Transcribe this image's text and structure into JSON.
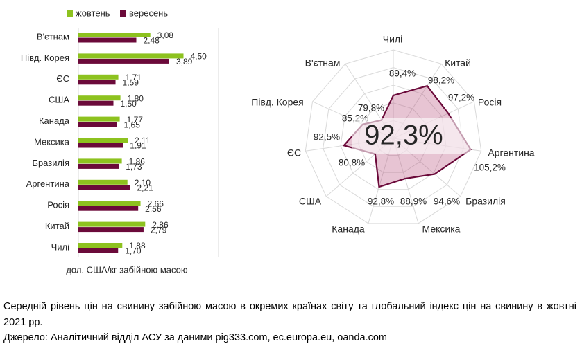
{
  "chart_data": [
    {
      "type": "bar",
      "orientation": "horizontal",
      "categories": [
        "В'єтнам",
        "Півд. Корея",
        "ЄС",
        "США",
        "Канада",
        "Мексика",
        "Бразилія",
        "Аргентина",
        "Росія",
        "Китай",
        "Чилі"
      ],
      "series": [
        {
          "name": "жовтень",
          "color": "#8dc21f",
          "values": [
            3.08,
            4.5,
            1.71,
            1.8,
            1.77,
            2.11,
            1.86,
            2.1,
            2.66,
            2.86,
            1.88
          ],
          "value_labels": [
            "3,08",
            "4,50",
            "1,71",
            "1,80",
            "1,77",
            "2,11",
            "1,86",
            "2,10",
            "2,66",
            "2,86",
            "1,88"
          ]
        },
        {
          "name": "вересень",
          "color": "#6b0a3a",
          "values": [
            2.48,
            3.89,
            1.59,
            1.5,
            1.65,
            1.91,
            1.73,
            2.21,
            2.56,
            2.79,
            1.7
          ],
          "value_labels": [
            "2,48",
            "3,89",
            "1,59",
            "1,50",
            "1,65",
            "1,91",
            "1,73",
            "2,21",
            "2,56",
            "2,79",
            "1,70"
          ]
        }
      ],
      "xlim": [
        0,
        6
      ],
      "x_label": "дол. США/кг забійною масою",
      "legend": "top"
    },
    {
      "type": "radar",
      "categories": [
        "Чилі",
        "Китай",
        "Росія",
        "Аргентина",
        "Бразилія",
        "Мексика",
        "Канада",
        "США",
        "ЄС",
        "Півд. Корея",
        "В'єтнам"
      ],
      "values": [
        89.4,
        98.2,
        97.2,
        105.2,
        94.6,
        88.9,
        92.8,
        80.8,
        92.5,
        85.2,
        79.8
      ],
      "value_labels": [
        "89,4%",
        "98,2%",
        "97,2%",
        "105,2%",
        "94,6%",
        "88,9%",
        "92,8%",
        "80,8%",
        "92,5%",
        "85,2%",
        "79,8%"
      ],
      "value_label_colors": [
        "#c00000",
        "#c00000",
        "#c00000",
        "#00b050",
        "#c00000",
        "#c00000",
        "#c00000",
        "#c00000",
        "#c00000",
        "#c00000",
        "#c00000"
      ],
      "ylim": [
        70,
        110
      ],
      "grid": true,
      "color": "#6b0a3a",
      "fill": "rgba(176,60,110,0.3)",
      "center_label": "92,3%"
    }
  ],
  "caption": "Середній рівень цін на свинину забійною масою в окремих країнах світу та глобальний індекс цін на свинину в жовтні 2021 рр.",
  "source": "Джерело: Аналітичний відділ АСУ за даними pig333.com, ec.europa.eu, oanda.com"
}
